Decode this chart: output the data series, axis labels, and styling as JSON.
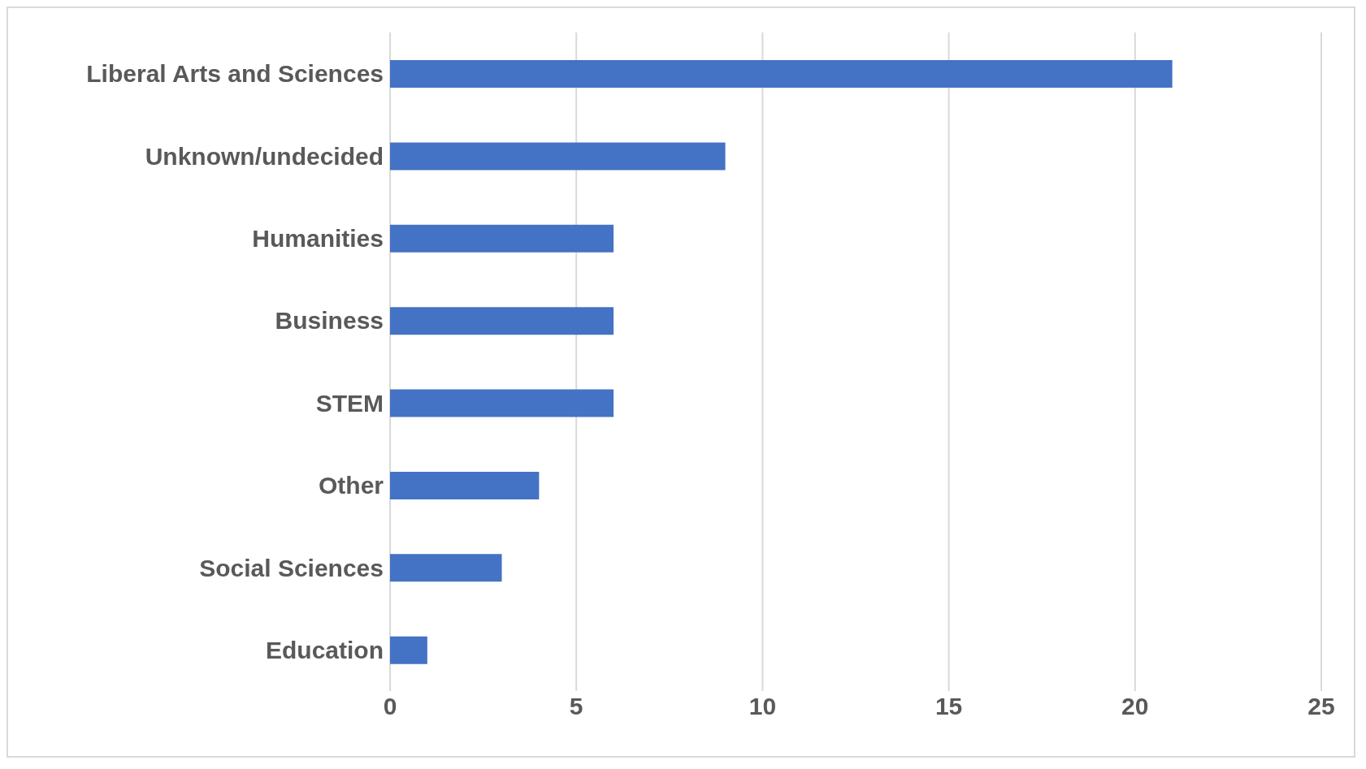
{
  "chart_data": {
    "type": "bar",
    "orientation": "horizontal",
    "categories": [
      "Liberal Arts and Sciences",
      "Unknown/undecided",
      "Humanities",
      "Business",
      "STEM",
      "Other",
      "Social Sciences",
      "Education"
    ],
    "values": [
      21,
      9,
      6,
      6,
      6,
      4,
      3,
      1
    ],
    "color": "#4472c4",
    "xlim": [
      0,
      25
    ],
    "xticks": [
      0,
      5,
      10,
      15,
      20,
      25
    ],
    "grid": "x"
  }
}
